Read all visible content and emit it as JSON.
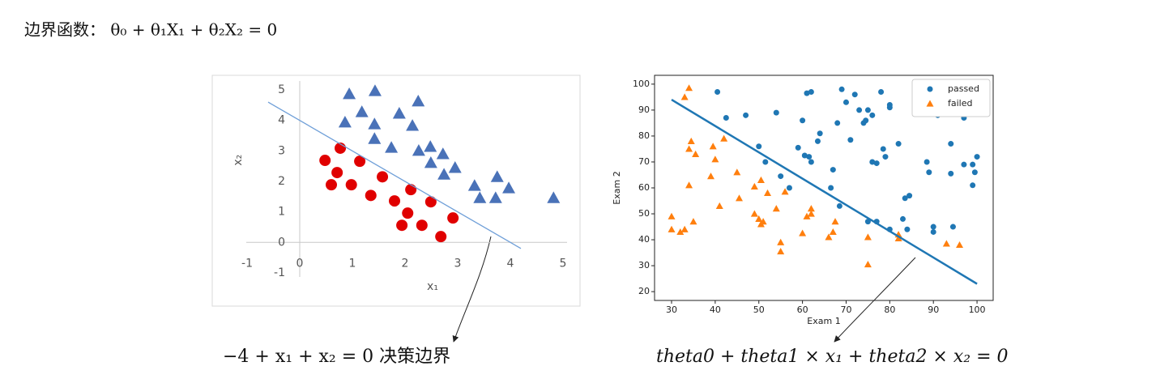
{
  "heading": "边界函数：  θ₀ + θ₁X₁ + θ₂X₂ = 0",
  "captions": [
    "−4 + x₁ + x₂ = 0  决策边界",
    "theta0 + theta1 × x₁ + theta2 × x₂ = 0"
  ],
  "chart_data": [
    {
      "type": "scatter",
      "axes_style": "origin",
      "x_label": "x₁",
      "y_label": "x₂",
      "xlim": [
        -1.2,
        5.2
      ],
      "ylim": [
        -1.4,
        5.4
      ],
      "xticks": [
        -1,
        0,
        1,
        2,
        3,
        4,
        5
      ],
      "yticks": [
        -1,
        0,
        1,
        2,
        3,
        4,
        5
      ],
      "series": [
        {
          "marker": "triangle",
          "color": "#4a72b8",
          "x": [
            0.94,
            1.43,
            1.18,
            0.86,
            1.42,
            1.89,
            2.25,
            2.14,
            1.42,
            1.74,
            2.26,
            2.48,
            2.72,
            2.49,
            2.74,
            2.95,
            3.32,
            3.75,
            3.42,
            3.72,
            3.97,
            4.82
          ],
          "values": [
            4.87,
            4.97,
            4.28,
            3.94,
            3.88,
            4.23,
            4.63,
            3.83,
            3.4,
            3.11,
            3.01,
            3.14,
            2.9,
            2.61,
            2.23,
            2.45,
            1.86,
            2.15,
            1.46,
            1.46,
            1.78,
            1.46
          ]
        },
        {
          "marker": "circle",
          "color": "#e00000",
          "x": [
            0.77,
            0.48,
            1.14,
            0.71,
            0.6,
            0.98,
            1.57,
            1.35,
            2.11,
            1.8,
            2.49,
            2.05,
            2.91,
            1.94,
            2.32,
            2.68
          ],
          "values": [
            3.09,
            2.69,
            2.66,
            2.29,
            1.89,
            1.89,
            2.15,
            1.54,
            1.73,
            1.36,
            1.33,
            0.96,
            0.8,
            0.56,
            0.56,
            0.19
          ]
        },
        {
          "kind": "line",
          "color": "#6f9fd8",
          "x": [
            -0.6,
            4.2
          ],
          "values": [
            4.6,
            -0.2
          ]
        }
      ]
    },
    {
      "type": "scatter",
      "axes_style": "box",
      "x_label": "Exam 1",
      "y_label": "Exam 2",
      "legend": "upper right",
      "xlim": [
        26.1,
        103.7
      ],
      "ylim": [
        16.6,
        103.4
      ],
      "xticks": [
        30,
        40,
        50,
        60,
        70,
        80,
        90,
        100
      ],
      "yticks": [
        20,
        30,
        40,
        50,
        60,
        70,
        80,
        90,
        100
      ],
      "series": [
        {
          "name": "passed",
          "marker": "circle",
          "color": "#1f77b4",
          "x": [
            40.5,
            42.5,
            47,
            50,
            51.5,
            54,
            55,
            57,
            59,
            60,
            60.5,
            61,
            62,
            61.5,
            62,
            63.5,
            64,
            66.5,
            67,
            68,
            68.5,
            69,
            70,
            71,
            72,
            73,
            74,
            74.5,
            75,
            75,
            76,
            76,
            77,
            77,
            78,
            78.5,
            79,
            80,
            80,
            80,
            82,
            83,
            83.5,
            84.5,
            84,
            88.5,
            89,
            90,
            90,
            90,
            91,
            94,
            94,
            94.5,
            97,
            97,
            99,
            99,
            99.5,
            100
          ],
          "values": [
            97,
            87,
            88,
            76,
            70,
            89,
            64.5,
            60,
            75.5,
            86,
            72.5,
            96.5,
            97,
            72,
            70,
            78,
            81,
            60,
            67,
            85,
            53,
            98,
            93,
            78.5,
            96,
            90,
            85,
            86,
            90,
            47,
            88,
            70,
            47,
            69.5,
            97,
            75,
            72,
            92,
            91,
            44,
            77,
            48,
            56,
            57,
            44,
            70,
            66,
            45,
            43,
            89,
            88,
            77,
            65.5,
            45,
            87,
            69,
            61,
            69,
            66,
            72
          ]
        },
        {
          "name": "failed",
          "marker": "triangle",
          "color": "#ff7f0e",
          "x": [
            30,
            30,
            32,
            33,
            33,
            34,
            34,
            34,
            34.5,
            35,
            35.5,
            39,
            39.5,
            40,
            41,
            42,
            45,
            45.5,
            49,
            49,
            50,
            50.5,
            50.5,
            51,
            52,
            54,
            55,
            55,
            56,
            60,
            61,
            62,
            62,
            66,
            67,
            67.5,
            75,
            75,
            82,
            82,
            93,
            96
          ],
          "values": [
            49,
            44,
            43,
            44,
            95,
            98.5,
            75,
            61,
            78,
            47,
            73,
            64.5,
            76,
            71,
            53,
            79,
            66,
            56,
            50,
            60.5,
            48,
            46,
            63,
            47,
            58,
            52,
            35.5,
            39,
            58.5,
            42.5,
            49,
            52,
            50,
            41,
            43,
            47,
            41,
            30.5,
            42,
            40.5,
            38.5,
            38
          ]
        },
        {
          "kind": "line",
          "color": "#1f77b4",
          "x": [
            30,
            100
          ],
          "values": [
            94,
            23
          ]
        }
      ]
    }
  ]
}
